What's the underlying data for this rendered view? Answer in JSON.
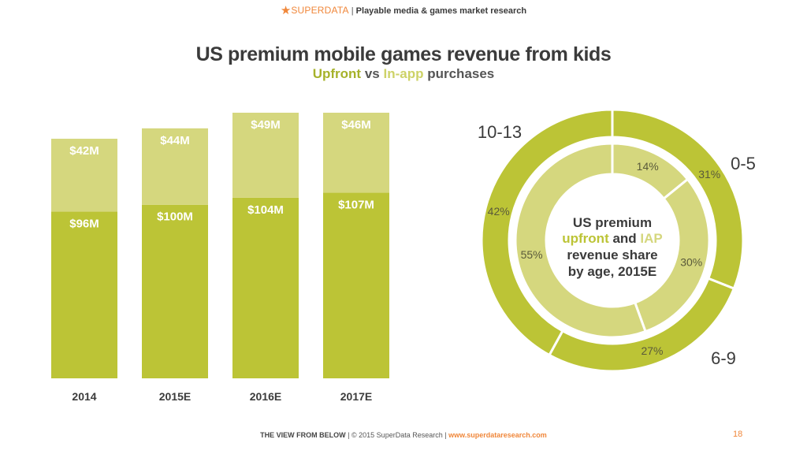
{
  "header": {
    "brand": "SUPERDATA",
    "separator": "|",
    "tagline": "Playable media & games market research"
  },
  "title": "US premium mobile games revenue from kids",
  "subtitle": {
    "upfront": "Upfront",
    "vs": "vs",
    "inapp": "In-app",
    "rest": "purchases"
  },
  "footer": {
    "view": "THE VIEW FROM BELOW",
    "copyright": "| © 2015 SuperData Research |",
    "url": "www.superdataresearch.com",
    "page": "18"
  },
  "colors": {
    "upfront": "#bcc436",
    "inapp": "#d5d77e",
    "text_dark": "#3b3b3b",
    "accent": "#f0873a"
  },
  "chart_data": [
    {
      "type": "bar",
      "stacked": true,
      "categories": [
        "2014",
        "2015E",
        "2016E",
        "2017E"
      ],
      "series": [
        {
          "name": "Upfront",
          "values": [
            96,
            100,
            104,
            107
          ],
          "labels": [
            "$96M",
            "$100M",
            "$104M",
            "$107M"
          ]
        },
        {
          "name": "In-app",
          "values": [
            42,
            44,
            49,
            46
          ],
          "labels": [
            "$42M",
            "$44M",
            "$49M",
            "$46M"
          ]
        }
      ],
      "ylim": [
        0,
        153
      ]
    },
    {
      "type": "pie",
      "donut": true,
      "center_label": [
        "US premium",
        "upfront and IAP",
        "revenue share",
        "by age, 2015E"
      ],
      "center_highlight": {
        "upfront": "upfront",
        "and": "and",
        "iap": "IAP"
      },
      "outer_ring": {
        "name": "Upfront",
        "slices": [
          {
            "label": "0-5",
            "value": 31,
            "text": "31%"
          },
          {
            "label": "6-9",
            "value": 27,
            "text": "27%"
          },
          {
            "label": "10-13",
            "value": 42,
            "text": "42%"
          }
        ]
      },
      "inner_ring": {
        "name": "In-app",
        "slices": [
          {
            "label": "0-5",
            "value": 14,
            "text": "14%"
          },
          {
            "label": "6-9",
            "value": 30,
            "text": "30%"
          },
          {
            "label": "10-13",
            "value": 55,
            "text": "55%"
          }
        ]
      }
    }
  ]
}
